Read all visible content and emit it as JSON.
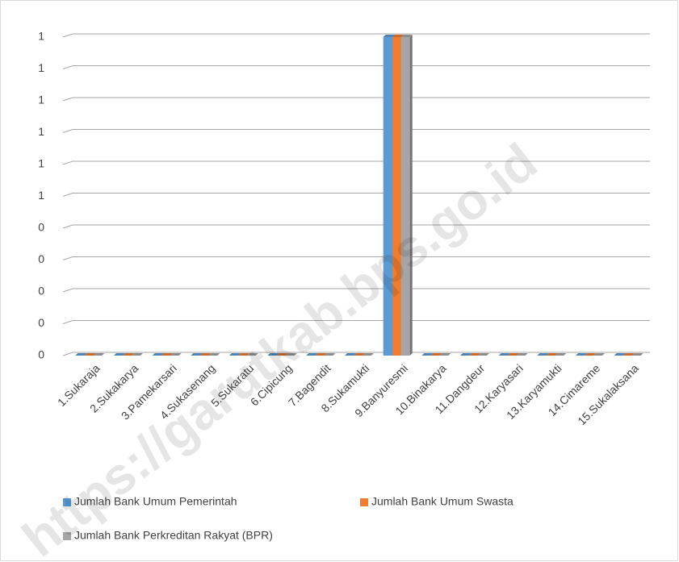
{
  "chart_data": {
    "type": "bar",
    "watermark": "https://garutkab.bps.go.id",
    "categories": [
      "1.Sukaraja",
      "2.Sukakarya",
      "3.Pamekarsari",
      "4.Sukasenang",
      "5.Sukaratu",
      "6.Cipicung",
      "7.Bagendit",
      "8.Sukamukti",
      "9.Banyuresmi",
      "10.Binakarya",
      "11.Dangdeur",
      "12.Karyasari",
      "13.Karyamukti",
      "14.Cimareme",
      "15.Sukalaksana"
    ],
    "series": [
      {
        "name": "Jumlah Bank Umum Pemerintah",
        "color": "#5b9bd5",
        "values": [
          0,
          0,
          0,
          0,
          0,
          0,
          0,
          0,
          1,
          0,
          0,
          0,
          0,
          0,
          0
        ]
      },
      {
        "name": "Jumlah Bank Umum Swasta",
        "color": "#ed7d31",
        "values": [
          0,
          0,
          0,
          0,
          0,
          0,
          0,
          0,
          1,
          0,
          0,
          0,
          0,
          0,
          0
        ]
      },
      {
        "name": "Jumlah Bank Perkreditan Rakyat (BPR)",
        "color": "#a5a5a5",
        "values": [
          0,
          0,
          0,
          0,
          0,
          0,
          0,
          0,
          1,
          0,
          0,
          0,
          0,
          0,
          0
        ]
      }
    ],
    "ylim": [
      0,
      1
    ],
    "yticks": [
      {
        "value": 0,
        "label": "0"
      },
      {
        "value": 0.1,
        "label": "0"
      },
      {
        "value": 0.2,
        "label": "0"
      },
      {
        "value": 0.3,
        "label": "0"
      },
      {
        "value": 0.4,
        "label": "0"
      },
      {
        "value": 0.5,
        "label": "1"
      },
      {
        "value": 0.6,
        "label": "1"
      },
      {
        "value": 0.7,
        "label": "1"
      },
      {
        "value": 0.8,
        "label": "1"
      },
      {
        "value": 0.9,
        "label": "1"
      },
      {
        "value": 1,
        "label": "1"
      }
    ],
    "grid": true
  }
}
